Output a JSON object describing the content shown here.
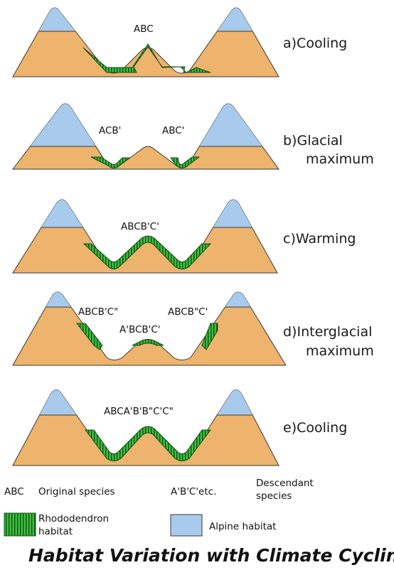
{
  "panels": [
    {
      "label_lines": [
        "a)Cooling"
      ],
      "species_labels": [
        "ABC"
      ]
    },
    {
      "label_lines": [
        "b)Glacial",
        "maximum"
      ],
      "species_labels": [
        "ACB'",
        "ABC'"
      ]
    },
    {
      "label_lines": [
        "c)Warming"
      ],
      "species_labels": [
        "ABCB'C'"
      ]
    },
    {
      "label_lines": [
        "d)Interglacial",
        "maximum"
      ],
      "species_labels": [
        "ABCB'C\"",
        "A'BCB'C'",
        "ABCB\"C'"
      ]
    },
    {
      "label_lines": [
        "e)Cooling"
      ],
      "species_labels": [
        "ABCA'B'B\"C'C\""
      ]
    }
  ],
  "legend": {
    "original_code": "ABC",
    "original_text": "Original species",
    "descendant_code": "A'B'C'etc.",
    "descendant_text_line1": "Descendant",
    "descendant_text_line2": "species",
    "rhodo_line1": "Rhododendron",
    "rhodo_line2": "habitat",
    "alpine_text": "Alpine habitat"
  },
  "title": "Habitat Variation with Climate Cycling",
  "colors": {
    "lowland": "#eeb36c",
    "alpine": "#a8cbed",
    "rhododendron": "#3ac03a",
    "rhododendron_stripe": "#14501a",
    "outline": "#3a3a3a"
  }
}
